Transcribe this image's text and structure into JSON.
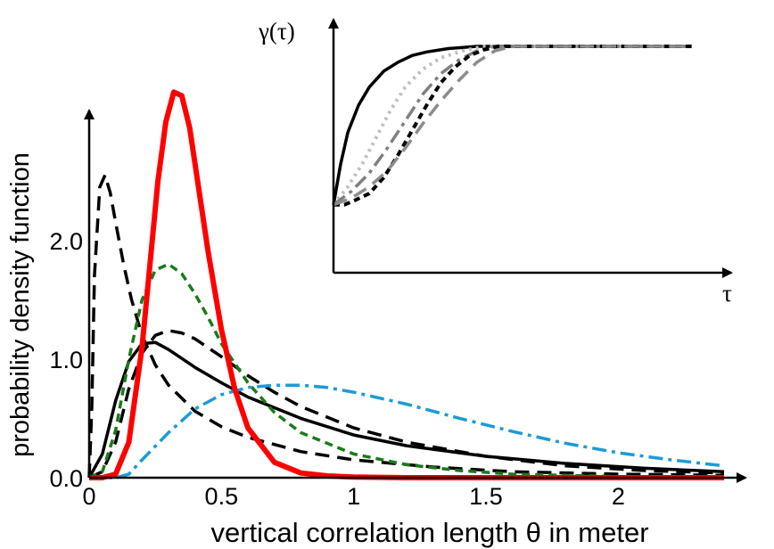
{
  "chart_data": [
    {
      "type": "line",
      "title": "",
      "xlabel": "vertical correlation length θ in meter",
      "ylabel": "probability density function",
      "xlim": [
        0,
        2.4
      ],
      "ylim": [
        0,
        3.2
      ],
      "xticks": [
        0,
        0.5,
        1,
        1.5,
        2
      ],
      "xtick_labels": [
        "0",
        "0.5",
        "1",
        "1.5",
        "2"
      ],
      "yticks": [
        0,
        1,
        2
      ],
      "ytick_labels": [
        "0.0",
        "1.0",
        "2.0"
      ],
      "grid": false,
      "series": [
        {
          "color": "#000000",
          "style": "long-dash",
          "x": [
            0,
            0.01,
            0.02,
            0.04,
            0.06,
            0.08,
            0.1,
            0.13,
            0.16,
            0.2,
            0.25,
            0.3,
            0.4,
            0.5,
            0.6,
            0.8,
            1.0,
            1.3,
            1.6,
            2.0,
            2.4
          ],
          "y": [
            0,
            0.6,
            1.7,
            2.45,
            2.55,
            2.4,
            2.15,
            1.8,
            1.5,
            1.2,
            0.95,
            0.78,
            0.56,
            0.43,
            0.34,
            0.22,
            0.15,
            0.09,
            0.05,
            0.03,
            0.02
          ]
        },
        {
          "color": "#000000",
          "style": "solid",
          "x": [
            0,
            0.05,
            0.1,
            0.15,
            0.2,
            0.25,
            0.3,
            0.4,
            0.5,
            0.6,
            0.8,
            1.0,
            1.2,
            1.5,
            1.8,
            2.1,
            2.4
          ],
          "y": [
            0,
            0.2,
            0.65,
            0.98,
            1.13,
            1.14,
            1.08,
            0.93,
            0.8,
            0.68,
            0.5,
            0.36,
            0.27,
            0.18,
            0.12,
            0.08,
            0.05
          ]
        },
        {
          "color": "#000000",
          "style": "long-dash",
          "x": [
            0,
            0.05,
            0.1,
            0.15,
            0.2,
            0.25,
            0.3,
            0.35,
            0.4,
            0.5,
            0.6,
            0.7,
            0.8,
            1.0,
            1.2,
            1.5,
            1.8,
            2.1,
            2.4
          ],
          "y": [
            0,
            0.05,
            0.3,
            0.75,
            1.05,
            1.2,
            1.24,
            1.22,
            1.17,
            1.02,
            0.86,
            0.72,
            0.6,
            0.42,
            0.3,
            0.18,
            0.1,
            0.06,
            0.04
          ]
        },
        {
          "color": "#1a7a1a",
          "style": "dashed",
          "x": [
            0,
            0.05,
            0.1,
            0.15,
            0.2,
            0.25,
            0.3,
            0.35,
            0.4,
            0.45,
            0.5,
            0.6,
            0.7,
            0.8,
            1.0,
            1.2,
            1.4,
            1.6,
            1.8,
            2.0
          ],
          "y": [
            0,
            0.05,
            0.4,
            1.0,
            1.5,
            1.75,
            1.8,
            1.72,
            1.55,
            1.35,
            1.13,
            0.8,
            0.55,
            0.38,
            0.2,
            0.11,
            0.06,
            0.03,
            0.02,
            0.01
          ]
        },
        {
          "color": "#1c9bd6",
          "style": "dash-dot",
          "x": [
            0,
            0.1,
            0.15,
            0.2,
            0.3,
            0.4,
            0.5,
            0.6,
            0.7,
            0.8,
            0.9,
            1.0,
            1.2,
            1.4,
            1.6,
            1.8,
            2.0,
            2.2,
            2.4
          ],
          "y": [
            0,
            0.0,
            0.03,
            0.15,
            0.38,
            0.58,
            0.7,
            0.76,
            0.78,
            0.78,
            0.76,
            0.72,
            0.62,
            0.5,
            0.39,
            0.29,
            0.21,
            0.15,
            0.1
          ]
        },
        {
          "color": "#ff0000",
          "style": "solid-thick",
          "x": [
            0,
            0.05,
            0.1,
            0.15,
            0.2,
            0.23,
            0.26,
            0.29,
            0.32,
            0.35,
            0.38,
            0.41,
            0.45,
            0.5,
            0.55,
            0.6,
            0.7,
            0.8,
            0.9,
            1.0,
            1.2,
            1.5,
            2.0,
            2.4
          ],
          "y": [
            0,
            0.0,
            0.03,
            0.3,
            1.1,
            1.8,
            2.5,
            3.0,
            3.25,
            3.22,
            2.95,
            2.5,
            1.9,
            1.25,
            0.75,
            0.42,
            0.13,
            0.04,
            0.015,
            0.005,
            0.0,
            0.0,
            0.0,
            0.0
          ]
        }
      ]
    },
    {
      "type": "line",
      "title": "",
      "xlabel": "τ",
      "ylabel": "γ(τ)",
      "xlim": [
        0,
        1
      ],
      "ylim": [
        0,
        1
      ],
      "grid": false,
      "series": [
        {
          "color": "#000000",
          "style": "solid",
          "x": [
            0,
            0.02,
            0.04,
            0.07,
            0.1,
            0.14,
            0.18,
            0.22,
            0.26,
            0.32,
            0.4,
            0.5,
            0.6,
            1.0
          ],
          "y": [
            0.3,
            0.48,
            0.62,
            0.74,
            0.82,
            0.89,
            0.93,
            0.96,
            0.975,
            0.99,
            1.0,
            1.0,
            1.0,
            1.0
          ]
        },
        {
          "color": "#c0c0c0",
          "style": "dotted",
          "x": [
            0,
            0.04,
            0.08,
            0.12,
            0.16,
            0.2,
            0.25,
            0.3,
            0.36,
            0.42,
            0.5,
            1.0
          ],
          "y": [
            0.3,
            0.38,
            0.48,
            0.6,
            0.72,
            0.82,
            0.9,
            0.95,
            0.98,
            1.0,
            1.0,
            1.0
          ]
        },
        {
          "color": "#808080",
          "style": "dash-dot",
          "x": [
            0,
            0.05,
            0.1,
            0.15,
            0.2,
            0.25,
            0.3,
            0.35,
            0.4,
            0.45,
            0.5,
            1.0
          ],
          "y": [
            0.3,
            0.36,
            0.44,
            0.55,
            0.67,
            0.79,
            0.88,
            0.94,
            0.98,
            1.0,
            1.0,
            1.0
          ]
        },
        {
          "color": "#000000",
          "style": "short-dash",
          "x": [
            0,
            0.03,
            0.06,
            0.1,
            0.14,
            0.18,
            0.22,
            0.26,
            0.3,
            0.34,
            0.38,
            0.42,
            0.46,
            0.5,
            1.0
          ],
          "y": [
            0.3,
            0.3,
            0.32,
            0.35,
            0.42,
            0.52,
            0.63,
            0.74,
            0.84,
            0.91,
            0.96,
            0.985,
            1.0,
            1.0,
            1.0
          ]
        },
        {
          "color": "#8c8c8c",
          "style": "long-dash",
          "x": [
            0,
            0.05,
            0.1,
            0.15,
            0.2,
            0.25,
            0.3,
            0.35,
            0.4,
            0.45,
            0.5,
            1.0
          ],
          "y": [
            0.3,
            0.33,
            0.38,
            0.45,
            0.55,
            0.66,
            0.76,
            0.85,
            0.93,
            0.98,
            1.0,
            1.0
          ]
        }
      ]
    }
  ]
}
